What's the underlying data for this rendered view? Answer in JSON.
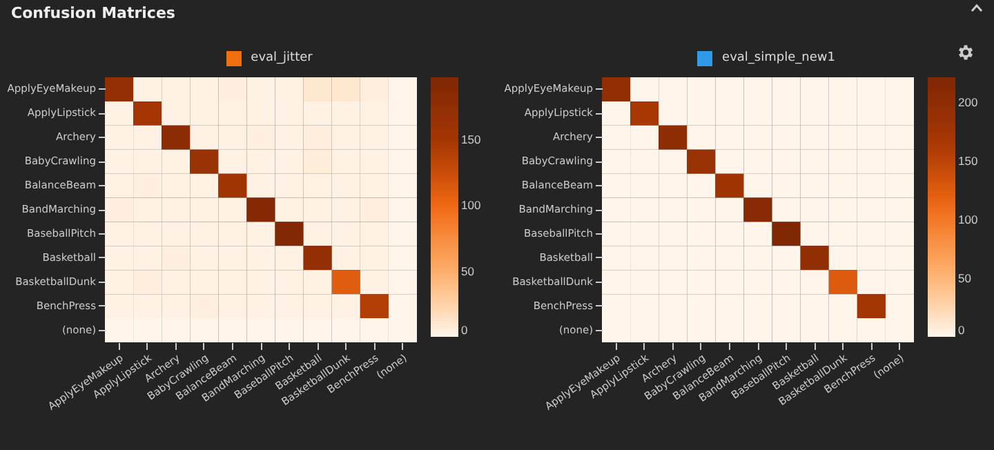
{
  "chart_data": [
    {
      "type": "heatmap",
      "title": "Confusion Matrices",
      "subtitle": "eval_jitter",
      "categories": [
        "ApplyEyeMakeup",
        "ApplyLipstick",
        "Archery",
        "BabyCrawling",
        "BalanceBeam",
        "BandMarching",
        "BaseballPitch",
        "Basketball",
        "BasketballDunk",
        "BenchPress",
        "(none)"
      ],
      "y_categories": [
        "ApplyEyeMakeup",
        "ApplyLipstick",
        "Archery",
        "BabyCrawling",
        "BalanceBeam",
        "BandMarching",
        "BaseballPitch",
        "Basketball",
        "BasketballDunk",
        "BenchPress",
        "(none)"
      ],
      "cells": [
        [
          170,
          2,
          3,
          2,
          4,
          3,
          2,
          10,
          10,
          5,
          0
        ],
        [
          2,
          150,
          3,
          2,
          3,
          2,
          2,
          3,
          2,
          2,
          0
        ],
        [
          2,
          3,
          180,
          2,
          2,
          4,
          2,
          5,
          2,
          2,
          0
        ],
        [
          3,
          2,
          2,
          165,
          3,
          2,
          2,
          6,
          2,
          2,
          0
        ],
        [
          2,
          4,
          2,
          2,
          155,
          2,
          2,
          2,
          2,
          2,
          0
        ],
        [
          4,
          2,
          2,
          2,
          2,
          190,
          2,
          2,
          2,
          5,
          0
        ],
        [
          2,
          3,
          2,
          3,
          3,
          2,
          192,
          2,
          2,
          2,
          0
        ],
        [
          2,
          2,
          4,
          2,
          2,
          2,
          3,
          170,
          2,
          3,
          0
        ],
        [
          2,
          5,
          2,
          2,
          2,
          2,
          2,
          3,
          110,
          2,
          0
        ],
        [
          2,
          2,
          2,
          4,
          2,
          2,
          2,
          3,
          2,
          140,
          0
        ],
        [
          0,
          0,
          0,
          0,
          0,
          0,
          0,
          0,
          0,
          0,
          0
        ]
      ],
      "clim": [
        0,
        197
      ],
      "cticks": [
        0,
        50,
        100,
        150
      ]
    },
    {
      "type": "heatmap",
      "subtitle": "eval_simple_new1",
      "categories": [
        "ApplyEyeMakeup",
        "ApplyLipstick",
        "Archery",
        "BabyCrawling",
        "BalanceBeam",
        "BandMarching",
        "BaseballPitch",
        "Basketball",
        "BasketballDunk",
        "BenchPress",
        "(none)"
      ],
      "y_categories": [
        "ApplyEyeMakeup",
        "ApplyLipstick",
        "Archery",
        "BabyCrawling",
        "BalanceBeam",
        "BandMarching",
        "BaseballPitch",
        "Basketball",
        "BasketballDunk",
        "BenchPress",
        "(none)"
      ],
      "cells": [
        [
          195,
          0,
          0,
          0,
          0,
          0,
          0,
          0,
          0,
          0,
          0
        ],
        [
          0,
          165,
          0,
          0,
          0,
          0,
          0,
          0,
          0,
          0,
          0
        ],
        [
          0,
          0,
          200,
          0,
          0,
          0,
          0,
          0,
          0,
          0,
          0
        ],
        [
          0,
          0,
          0,
          185,
          0,
          0,
          0,
          0,
          0,
          0,
          0
        ],
        [
          0,
          0,
          0,
          0,
          175,
          0,
          0,
          0,
          0,
          0,
          0
        ],
        [
          0,
          0,
          0,
          0,
          0,
          210,
          0,
          0,
          0,
          0,
          0
        ],
        [
          0,
          0,
          0,
          0,
          0,
          0,
          220,
          0,
          0,
          0,
          0
        ],
        [
          0,
          0,
          0,
          0,
          0,
          0,
          0,
          195,
          0,
          0,
          0
        ],
        [
          0,
          0,
          0,
          0,
          0,
          0,
          0,
          0,
          125,
          0,
          0
        ],
        [
          0,
          0,
          0,
          0,
          0,
          0,
          0,
          0,
          0,
          170,
          0
        ],
        [
          0,
          0,
          0,
          0,
          0,
          0,
          0,
          0,
          0,
          0,
          0
        ]
      ],
      "clim": [
        0,
        221
      ],
      "cticks": [
        0,
        50,
        100,
        150,
        200
      ]
    }
  ]
}
